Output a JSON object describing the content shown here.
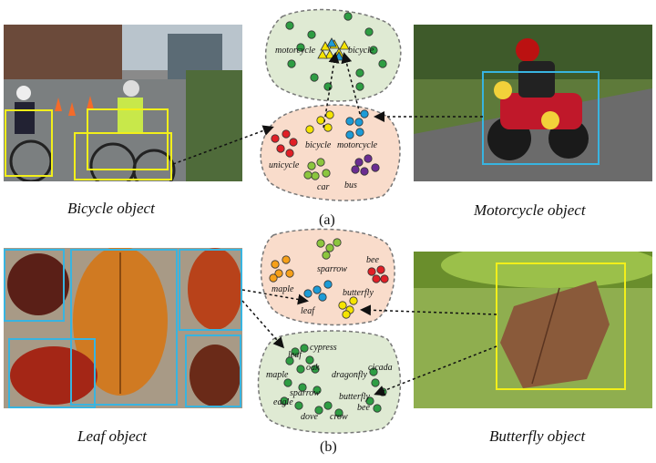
{
  "panels": {
    "a": {
      "label": "(a)",
      "left_caption": "Bicycle object",
      "right_caption": "Motorcycle object",
      "top_cluster_labels": [
        "motorcycle",
        "bicycle"
      ],
      "bottom_cluster_labels": [
        "bicycle",
        "motorcycle",
        "unicycle",
        "car",
        "bus"
      ]
    },
    "b": {
      "label": "(b)",
      "left_caption": "Leaf object",
      "right_caption": "Butterfly object",
      "top_cluster_labels": [
        "sparrow",
        "bee",
        "maple",
        "butterfly",
        "leaf"
      ],
      "bottom_cluster_labels": [
        "cypress",
        "leaf",
        "oak",
        "maple",
        "dragonfly",
        "cicada",
        "sparrow",
        "butterfly",
        "eagle",
        "bee",
        "dove",
        "crow"
      ]
    }
  },
  "colors": {
    "green_blob": "#dfead3",
    "pink_blob": "#f9dccb",
    "green_dot": "#2e9d43",
    "yellow_dot": "#f5e400",
    "blue_dot": "#1c9bd6",
    "red_dot": "#e01f26",
    "light_green_dot": "#8cc63e",
    "purple_dot": "#6a2d91",
    "orange_dot": "#f6a01a",
    "yellow_box": "#f2ef1a",
    "cyan_box": "#38b4e0"
  }
}
